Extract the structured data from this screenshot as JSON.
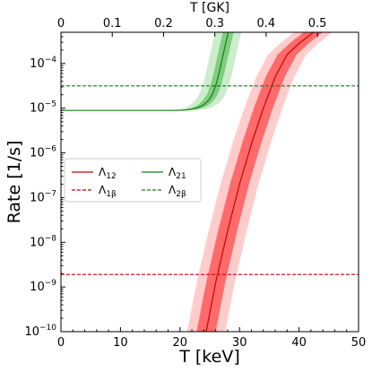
{
  "chart_data": {
    "type": "line",
    "xlabel": "T [keV]",
    "ylabel": "Rate [1/s]",
    "top_xlabel": "T [GK]",
    "xlim": [
      0,
      50
    ],
    "ylim_log10": [
      -10,
      -3.3
    ],
    "y_scale": "log",
    "x_ticks": [
      "0",
      "10",
      "20",
      "30",
      "40",
      "50"
    ],
    "top_x_ticks": [
      {
        "label": "0",
        "gk": 0.0
      },
      {
        "label": "0.1",
        "gk": 0.1
      },
      {
        "label": "0.2",
        "gk": 0.2
      },
      {
        "label": "0.3",
        "gk": 0.3
      },
      {
        "label": "0.4",
        "gk": 0.4
      },
      {
        "label": "0.5",
        "gk": 0.5
      }
    ],
    "y_ticks": [
      {
        "base": "10",
        "exp": "−10",
        "log": -10
      },
      {
        "base": "10",
        "exp": "−9",
        "log": -9
      },
      {
        "base": "10",
        "exp": "−8",
        "log": -8
      },
      {
        "base": "10",
        "exp": "−7",
        "log": -7
      },
      {
        "base": "10",
        "exp": "−6",
        "log": -6
      },
      {
        "base": "10",
        "exp": "−5",
        "log": -5
      },
      {
        "base": "10",
        "exp": "−4",
        "log": -4
      }
    ],
    "grid": false,
    "legend_position": "center-left",
    "legend": [
      {
        "base": "Λ",
        "sub": "12",
        "style": "solid",
        "color": "#cc0000"
      },
      {
        "base": "Λ",
        "sub": "21",
        "style": "solid",
        "color": "#1a7a1a"
      },
      {
        "base": "Λ",
        "sub": "1β",
        "style": "dashed",
        "color": "#cc0000"
      },
      {
        "base": "Λ",
        "sub": "2β",
        "style": "dashed",
        "color": "#1a7a1a"
      }
    ],
    "series": [
      {
        "name": "Λ12",
        "style": "solid",
        "color": "#cc0000",
        "band_inner_color": "#ff6a6a",
        "band_outer_color": "#ffcccc",
        "x": [
          24.4,
          26,
          28,
          30,
          32,
          34,
          36,
          38,
          40,
          42.4
        ],
        "y_log10": [
          -10,
          -8.9,
          -7.75,
          -6.7,
          -5.8,
          -5.0,
          -4.3,
          -3.8,
          -3.55,
          -3.3
        ],
        "inner_x_offset": 1.6,
        "outer_x_offset": 3.2
      },
      {
        "name": "Λ21",
        "style": "solid",
        "color": "#1a7a1a",
        "band_inner_color": "#7fce7f",
        "band_outer_color": "#cceccc",
        "x": [
          0,
          20,
          21,
          22,
          23,
          24,
          24.8,
          25.4,
          26,
          26.5,
          27,
          27.5,
          28.1
        ],
        "y_log10": [
          -5.05,
          -5.05,
          -5.04,
          -5.02,
          -4.99,
          -4.92,
          -4.82,
          -4.7,
          -4.5,
          -4.25,
          -3.95,
          -3.65,
          -3.3
        ],
        "inner_x_offset": 0.9,
        "outer_x_offset": 2.2
      },
      {
        "name": "Λ1β",
        "style": "dashed",
        "color": "#cc0000",
        "x": [
          0,
          50
        ],
        "y_log10": [
          -8.72,
          -8.72
        ]
      },
      {
        "name": "Λ2β",
        "style": "dashed",
        "color": "#1a7a1a",
        "x": [
          0,
          50
        ],
        "y_log10": [
          -4.5,
          -4.5
        ]
      }
    ]
  }
}
